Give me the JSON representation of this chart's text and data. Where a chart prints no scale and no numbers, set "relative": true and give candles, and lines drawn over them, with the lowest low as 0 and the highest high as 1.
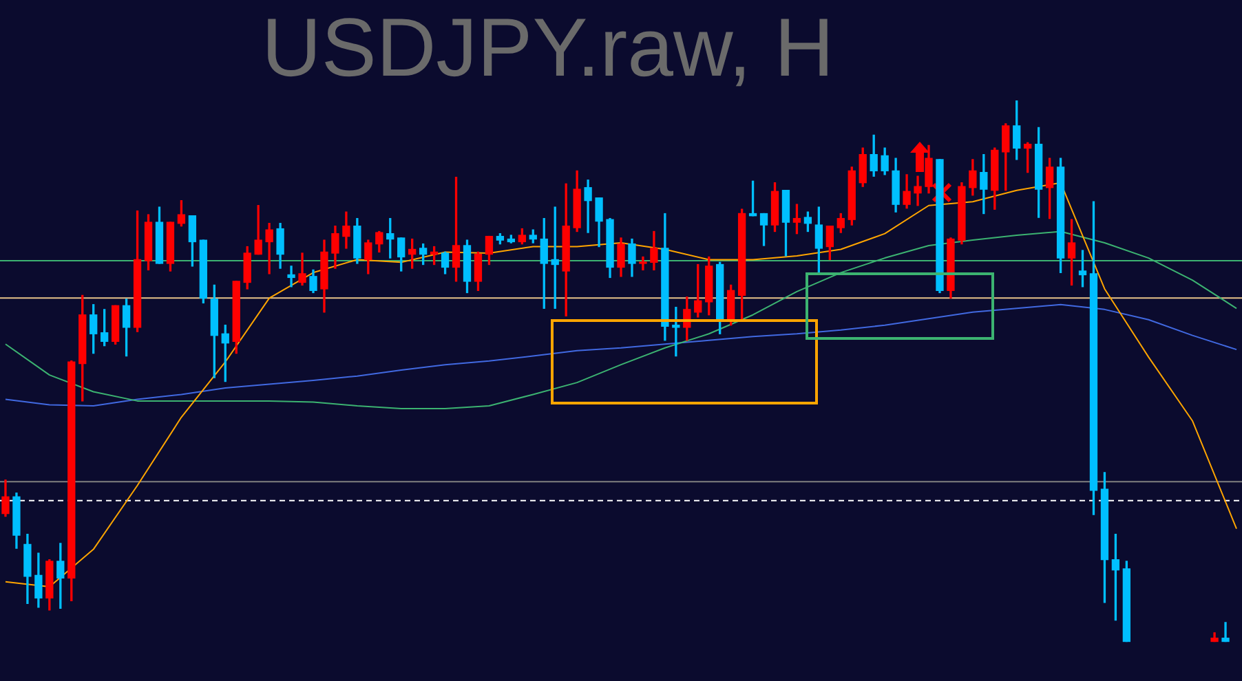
{
  "chart_data": {
    "type": "candlestick",
    "title": "USDJPY.raw, H",
    "relative": true,
    "categories": [
      null,
      null,
      null,
      null,
      null,
      null,
      null,
      null,
      null,
      null,
      null,
      null,
      null,
      null,
      null,
      null,
      null,
      null,
      null,
      null,
      null,
      null,
      null,
      null,
      null,
      null,
      null,
      null,
      null,
      null,
      null,
      null,
      null,
      null,
      null,
      null,
      null,
      null,
      null,
      null,
      null,
      null,
      null,
      null,
      null,
      null,
      null,
      null,
      null,
      null,
      null,
      null,
      null,
      null,
      null,
      null,
      null,
      null,
      null,
      null,
      null,
      null,
      null,
      null,
      null,
      null,
      null,
      null,
      null,
      null,
      null,
      null,
      null,
      null,
      null,
      null,
      null,
      null,
      null,
      null,
      null,
      null,
      null,
      null,
      null,
      null,
      null,
      null,
      null,
      null,
      null,
      null,
      null,
      null,
      null,
      null,
      null,
      null,
      null,
      null,
      null,
      null,
      null,
      null,
      null,
      null,
      null,
      null,
      null,
      null,
      null,
      null,
      null
    ],
    "ohlc": [
      [
        0.237,
        0.299,
        0.232,
        0.268
      ],
      [
        0.268,
        0.275,
        0.173,
        0.197
      ],
      [
        0.18,
        0.199,
        0.071,
        0.121
      ],
      [
        0.123,
        0.164,
        0.064,
        0.081
      ],
      [
        0.081,
        0.152,
        0.059,
        0.149
      ],
      [
        0.149,
        0.182,
        0.062,
        0.118
      ],
      [
        0.118,
        0.519,
        0.076,
        0.517
      ],
      [
        0.514,
        0.64,
        0.445,
        0.604
      ],
      [
        0.604,
        0.623,
        0.533,
        0.569
      ],
      [
        0.571,
        0.614,
        0.547,
        0.555
      ],
      [
        0.555,
        0.621,
        0.55,
        0.621
      ],
      [
        0.621,
        0.633,
        0.528,
        0.581
      ],
      [
        0.581,
        0.796,
        0.573,
        0.706
      ],
      [
        0.704,
        0.789,
        0.687,
        0.775
      ],
      [
        0.775,
        0.803,
        0.699,
        0.699
      ],
      [
        0.699,
        0.775,
        0.685,
        0.775
      ],
      [
        0.773,
        0.815,
        0.768,
        0.789
      ],
      [
        0.787,
        0.787,
        0.694,
        0.739
      ],
      [
        0.742,
        0.742,
        0.626,
        0.635
      ],
      [
        0.633,
        0.659,
        0.488,
        0.566
      ],
      [
        0.569,
        0.585,
        0.481,
        0.552
      ],
      [
        0.555,
        0.666,
        0.533,
        0.666
      ],
      [
        0.664,
        0.73,
        0.652,
        0.718
      ],
      [
        0.716,
        0.806,
        0.716,
        0.742
      ],
      [
        0.739,
        0.773,
        0.68,
        0.761
      ],
      [
        0.763,
        0.773,
        0.69,
        0.716
      ],
      [
        0.678,
        0.694,
        0.656,
        0.673
      ],
      [
        0.664,
        0.718,
        0.659,
        0.68
      ],
      [
        0.675,
        0.687,
        0.645,
        0.649
      ],
      [
        0.652,
        0.742,
        0.609,
        0.72
      ],
      [
        0.718,
        0.768,
        0.69,
        0.754
      ],
      [
        0.749,
        0.794,
        0.727,
        0.768
      ],
      [
        0.768,
        0.782,
        0.699,
        0.709
      ],
      [
        0.706,
        0.742,
        0.68,
        0.737
      ],
      [
        0.735,
        0.758,
        0.72,
        0.756
      ],
      [
        0.754,
        0.782,
        0.709,
        0.744
      ],
      [
        0.746,
        0.746,
        0.685,
        0.711
      ],
      [
        0.716,
        0.744,
        0.69,
        0.725
      ],
      [
        0.727,
        0.735,
        0.697,
        0.716
      ],
      [
        0.716,
        0.73,
        0.697,
        0.72
      ],
      [
        0.718,
        0.72,
        0.68,
        0.692
      ],
      [
        0.692,
        0.858,
        0.666,
        0.732
      ],
      [
        0.732,
        0.742,
        0.645,
        0.666
      ],
      [
        0.666,
        0.72,
        0.649,
        0.716
      ],
      [
        0.716,
        0.749,
        0.697,
        0.749
      ],
      [
        0.749,
        0.754,
        0.735,
        0.742
      ],
      [
        0.744,
        0.751,
        0.737,
        0.739
      ],
      [
        0.739,
        0.763,
        0.735,
        0.751
      ],
      [
        0.751,
        0.761,
        0.737,
        0.744
      ],
      [
        0.744,
        0.782,
        0.616,
        0.699
      ],
      [
        0.706,
        0.803,
        0.616,
        0.697
      ],
      [
        0.685,
        0.846,
        0.602,
        0.768
      ],
      [
        0.765,
        0.87,
        0.758,
        0.836
      ],
      [
        0.839,
        0.853,
        0.756,
        0.815
      ],
      [
        0.82,
        0.82,
        0.73,
        0.777
      ],
      [
        0.78,
        0.782,
        0.673,
        0.692
      ],
      [
        0.692,
        0.746,
        0.675,
        0.735
      ],
      [
        0.735,
        0.744,
        0.675,
        0.699
      ],
      [
        0.699,
        0.711,
        0.687,
        0.701
      ],
      [
        0.701,
        0.758,
        0.687,
        0.727
      ],
      [
        0.727,
        0.791,
        0.557,
        0.583
      ],
      [
        0.585,
        0.618,
        0.528,
        0.581
      ],
      [
        0.581,
        0.637,
        0.557,
        0.614
      ],
      [
        0.609,
        0.697,
        0.6,
        0.63
      ],
      [
        0.628,
        0.711,
        0.604,
        0.694
      ],
      [
        0.697,
        0.701,
        0.569,
        0.595
      ],
      [
        0.595,
        0.659,
        0.585,
        0.649
      ],
      [
        0.64,
        0.799,
        0.592,
        0.791
      ],
      [
        0.791,
        0.851,
        0.787,
        0.787
      ],
      [
        0.791,
        0.791,
        0.732,
        0.77
      ],
      [
        0.77,
        0.848,
        0.758,
        0.832
      ],
      [
        0.834,
        0.834,
        0.713,
        0.775
      ],
      [
        0.775,
        0.808,
        0.754,
        0.782
      ],
      [
        0.784,
        0.794,
        0.758,
        0.773
      ],
      [
        0.77,
        0.803,
        0.68,
        0.727
      ],
      [
        0.73,
        0.768,
        0.706,
        0.768
      ],
      [
        0.765,
        0.791,
        0.756,
        0.782
      ],
      [
        0.78,
        0.877,
        0.77,
        0.87
      ],
      [
        0.848,
        0.912,
        0.841,
        0.9
      ],
      [
        0.9,
        0.936,
        0.86,
        0.87
      ],
      [
        0.898,
        0.912,
        0.863,
        0.87
      ],
      [
        0.87,
        0.893,
        0.794,
        0.808
      ],
      [
        0.808,
        0.863,
        0.801,
        0.832
      ],
      [
        0.829,
        0.86,
        0.806,
        0.841
      ],
      [
        0.841,
        0.917,
        0.829,
        0.893
      ],
      [
        0.891,
        0.891,
        0.645,
        0.649
      ],
      [
        0.649,
        0.746,
        0.635,
        0.744
      ],
      [
        0.742,
        0.848,
        0.735,
        0.841
      ],
      [
        0.839,
        0.891,
        0.825,
        0.87
      ],
      [
        0.867,
        0.9,
        0.791,
        0.836
      ],
      [
        0.834,
        0.912,
        0.799,
        0.908
      ],
      [
        0.905,
        0.957,
        0.834,
        0.953
      ],
      [
        0.953,
        1,
        0.891,
        0.912
      ],
      [
        0.912,
        0.922,
        0.867,
        0.919
      ],
      [
        0.919,
        0.95,
        0.784,
        0.836
      ],
      [
        0.839,
        0.893,
        0.782,
        0.877
      ],
      [
        0.877,
        0.893,
        0.682,
        0.709
      ],
      [
        0.709,
        0.78,
        0.659,
        0.737
      ],
      [
        0.685,
        0.723,
        0.656,
        0.678
      ],
      [
        0.68,
        0.813,
        0.235,
        0.28
      ],
      [
        0.282,
        0.313,
        0.073,
        0.152
      ],
      [
        0.152,
        0.199,
        0.04,
        0.133
      ],
      [
        0.135,
        0.149,
        0,
        0
      ],
      null,
      null,
      null,
      null,
      null,
      null,
      null,
      [
        0,
        0.017,
        0,
        0.007
      ],
      [
        0.007,
        0.036,
        0,
        0
      ],
      null
    ],
    "colors": [
      "#ff0000",
      "#00bfff",
      "#00bfff",
      "#00bfff",
      "#ff0000",
      "#00bfff",
      "#ff0000",
      "#ff0000",
      "#00bfff",
      "#00bfff",
      "#ff0000",
      "#00bfff",
      "#ff0000",
      "#ff0000",
      "#00bfff",
      "#ff0000",
      "#ff0000",
      "#00bfff",
      "#00bfff",
      "#00bfff",
      "#00bfff",
      "#ff0000",
      "#ff0000",
      "#ff0000",
      "#ff0000",
      "#00bfff",
      "#00bfff",
      "#ff0000",
      "#00bfff",
      "#ff0000",
      "#ff0000",
      "#ff0000",
      "#00bfff",
      "#ff0000",
      "#ff0000",
      "#00bfff",
      "#00bfff",
      "#ff0000",
      "#00bfff",
      "#ff0000",
      "#00bfff",
      "#ff0000",
      "#00bfff",
      "#ff0000",
      "#ff0000",
      "#00bfff",
      "#00bfff",
      "#ff0000",
      "#00bfff",
      "#00bfff",
      "#00bfff",
      "#ff0000",
      "#ff0000",
      "#00bfff",
      "#00bfff",
      "#00bfff",
      "#ff0000",
      "#00bfff",
      "#ff0000",
      "#ff0000",
      "#00bfff",
      "#00bfff",
      "#ff0000",
      "#ff0000",
      "#ff0000",
      "#00bfff",
      "#ff0000",
      "#ff0000",
      "#00bfff",
      "#00bfff",
      "#ff0000",
      "#00bfff",
      "#ff0000",
      "#00bfff",
      "#00bfff",
      "#ff0000",
      "#ff0000",
      "#ff0000",
      "#ff0000",
      "#00bfff",
      "#00bfff",
      "#00bfff",
      "#ff0000",
      "#ff0000",
      "#ff0000",
      "#00bfff",
      "#ff0000",
      "#ff0000",
      "#ff0000",
      "#00bfff",
      "#ff0000",
      "#ff0000",
      "#00bfff",
      "#ff0000",
      "#00bfff",
      "#ff0000",
      "#00bfff",
      "#ff0000",
      "#00bfff",
      "#00bfff",
      "#00bfff",
      "#00bfff",
      "#00bfff",
      null,
      null,
      null,
      null,
      null,
      null,
      null,
      "#ff0000",
      "#00bfff",
      null
    ],
    "series": [
      {
        "type": "line",
        "color": "#ffa500",
        "values": [
          0.111,
          null,
          null,
          null,
          0.102,
          null,
          null,
          null,
          0.171,
          null,
          null,
          null,
          0.289,
          null,
          null,
          null,
          0.415,
          null,
          null,
          null,
          0.517,
          null,
          null,
          null,
          0.635,
          null,
          null,
          null,
          0.682,
          null,
          null,
          null,
          0.706,
          null,
          null,
          null,
          0.701,
          null,
          null,
          null,
          0.72,
          null,
          null,
          null,
          0.718,
          null,
          null,
          null,
          0.73,
          null,
          null,
          null,
          0.73,
          null,
          null,
          null,
          0.737,
          null,
          null,
          null,
          0.725,
          null,
          null,
          null,
          0.706,
          null,
          null,
          null,
          0.706,
          null,
          null,
          null,
          0.713,
          null,
          null,
          null,
          0.725,
          null,
          null,
          null,
          0.754,
          null,
          null,
          null,
          0.806,
          null,
          null,
          null,
          0.813,
          null,
          null,
          null,
          0.834,
          null,
          null,
          null,
          0.848,
          null,
          null,
          null,
          0.652,
          null,
          null,
          null,
          0.526,
          null,
          null,
          null,
          0.408,
          null,
          null,
          null,
          0.209
        ]
      },
      {
        "type": "line",
        "color": "#3cb371",
        "values": [
          0.55,
          null,
          null,
          null,
          0.493,
          null,
          null,
          null,
          0.462,
          null,
          null,
          null,
          0.445,
          null,
          null,
          null,
          0.445,
          null,
          null,
          null,
          0.445,
          null,
          null,
          null,
          0.445,
          null,
          null,
          null,
          0.443,
          null,
          null,
          null,
          0.436,
          null,
          null,
          null,
          0.431,
          null,
          null,
          null,
          0.431,
          null,
          null,
          null,
          0.436,
          null,
          null,
          null,
          0.457,
          null,
          null,
          null,
          0.479,
          null,
          null,
          null,
          0.512,
          null,
          null,
          null,
          0.543,
          null,
          null,
          null,
          0.569,
          null,
          null,
          null,
          0.604,
          null,
          null,
          null,
          0.647,
          null,
          null,
          null,
          0.682,
          null,
          null,
          null,
          0.709,
          null,
          null,
          null,
          0.732,
          null,
          null,
          null,
          0.742,
          null,
          null,
          null,
          0.751,
          null,
          null,
          null,
          0.758,
          null,
          null,
          null,
          0.737,
          null,
          null,
          null,
          0.709,
          null,
          null,
          null,
          0.668,
          null,
          null,
          null,
          0.616
        ]
      },
      {
        "type": "line",
        "color": "#4169e1",
        "values": [
          0.448,
          null,
          null,
          null,
          0.438,
          null,
          null,
          null,
          0.436,
          null,
          null,
          null,
          0.448,
          null,
          null,
          null,
          0.457,
          null,
          null,
          null,
          0.469,
          null,
          null,
          null,
          0.476,
          null,
          null,
          null,
          0.483,
          null,
          null,
          null,
          0.491,
          null,
          null,
          null,
          0.502,
          null,
          null,
          null,
          0.512,
          null,
          null,
          null,
          0.519,
          null,
          null,
          null,
          0.528,
          null,
          null,
          null,
          0.538,
          null,
          null,
          null,
          0.543,
          null,
          null,
          null,
          0.55,
          null,
          null,
          null,
          0.557,
          null,
          null,
          null,
          0.564,
          null,
          null,
          null,
          0.569,
          null,
          null,
          null,
          0.576,
          null,
          null,
          null,
          0.585,
          null,
          null,
          null,
          0.597,
          null,
          null,
          null,
          0.609,
          null,
          null,
          null,
          0.616,
          null,
          null,
          null,
          0.623,
          null,
          null,
          null,
          0.614,
          null,
          null,
          null,
          0.595,
          null,
          null,
          null,
          0.566,
          null,
          null,
          null,
          0.54
        ]
      }
    ],
    "ref_lines": [
      {
        "axis": "y",
        "value": 0.704,
        "color": "#3cb371",
        "line_style": "solid"
      },
      {
        "axis": "y",
        "value": 0.635,
        "color": "#e8c48a",
        "line_style": "solid"
      },
      {
        "axis": "y",
        "value": 0.296,
        "color": "#808080",
        "line_style": "solid"
      },
      {
        "axis": "y",
        "value": 0.261,
        "color": "#ffffff",
        "line_style": "dashed"
      }
    ]
  }
}
